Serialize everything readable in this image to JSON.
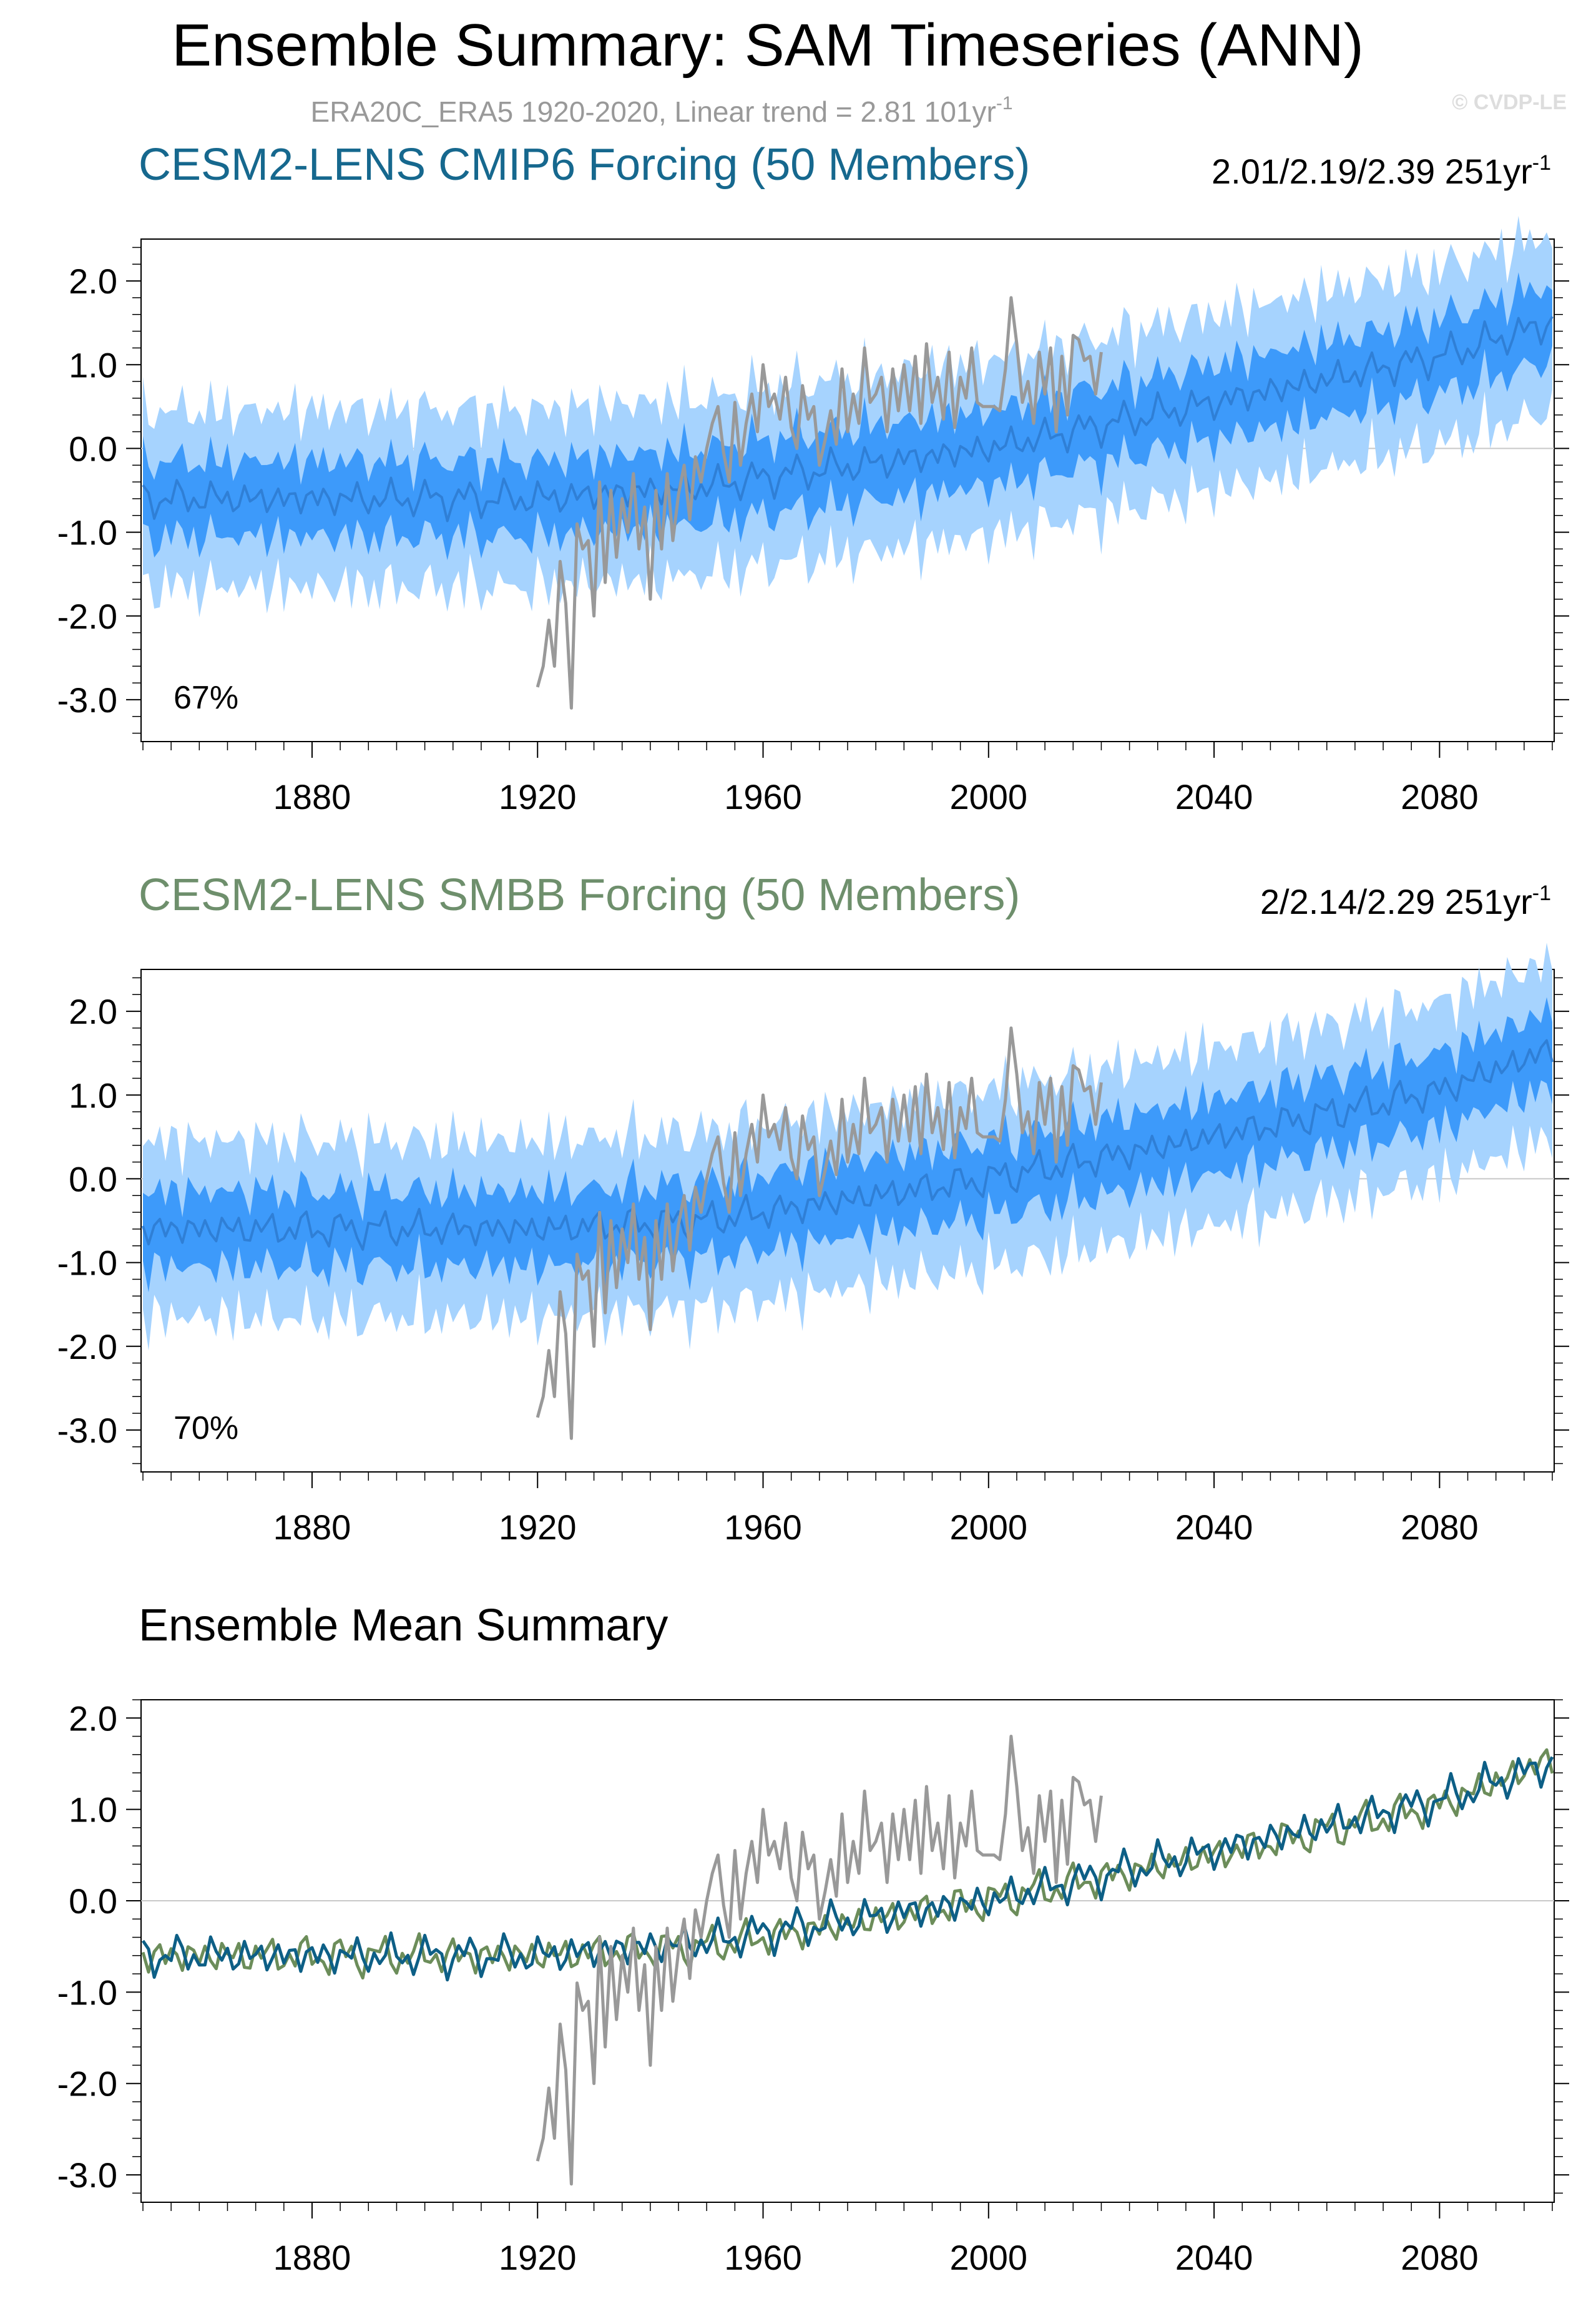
{
  "figure": {
    "main_title": "Ensemble Summary: SAM Timeseries (ANN)",
    "obs_label": "ERA20C_ERA5 1920-2020, Linear trend = 2.81 101yr",
    "obs_label_exp": "-1",
    "watermark": "© CVDP-LE"
  },
  "colors": {
    "band_outer": "#a6d3fe",
    "band_inner": "#3d9afa",
    "mean_line": "#2f7fd6",
    "obs_line": "#999999",
    "cmip6_title": "#16688e",
    "smbb_title": "#6e8f6c",
    "cmip6_mean": "#0d5f86",
    "smbb_mean": "#6c8d5a",
    "zero_line": "#c8c8c8"
  },
  "panels": [
    {
      "title": "CESM2-LENS CMIP6 Forcing (50 Members)",
      "trend_text": "2.01/2.19/2.39 251yr",
      "trend_exp": "-1",
      "percent": "67%"
    },
    {
      "title": "CESM2-LENS SMBB Forcing (50 Members)",
      "trend_text": "2/2.14/2.29 251yr",
      "trend_exp": "-1",
      "percent": "70%"
    },
    {
      "title": "Ensemble Mean Summary"
    }
  ],
  "chart_data": [
    {
      "type": "area",
      "name": "CESM2-LENS CMIP6 Forcing (50 Members)",
      "x_range": [
        1850,
        2100
      ],
      "ylim": [
        -3.5,
        2.5
      ],
      "xticks": [
        1880,
        1920,
        1960,
        2000,
        2040,
        2080
      ],
      "yticks": [
        2.0,
        1.0,
        0.0,
        -1.0,
        -2.0,
        -3.0
      ],
      "yticklabels": [
        "2.0",
        "1.0",
        "0.0",
        "-1.0",
        "-2.0",
        "-3.0"
      ],
      "mean_keypoints": {
        "x": [
          1850,
          1920,
          1950,
          1965,
          2000,
          2040,
          2080,
          2100
        ],
        "y": [
          -0.6,
          -0.6,
          -0.45,
          -0.3,
          0.0,
          0.55,
          1.1,
          1.5
        ]
      },
      "inner_halfwidth": 0.45,
      "outer_halfwidth": 1.05,
      "series": [
        {
          "name": "ERA20C_ERA5",
          "x_start": 1920,
          "values": [
            -2.85,
            -2.6,
            -2.05,
            -2.6,
            -1.35,
            -1.85,
            -3.1,
            -0.9,
            -1.2,
            -1.1,
            -2.0,
            -0.4,
            -1.6,
            -0.5,
            -1.3,
            -0.6,
            -1.0,
            -0.3,
            -1.2,
            -0.7,
            -1.8,
            -0.5,
            -1.2,
            -0.3,
            -1.1,
            -0.55,
            -0.2,
            -0.85,
            -0.1,
            -0.4,
            0.0,
            0.3,
            0.5,
            -0.05,
            -0.4,
            0.55,
            -0.2,
            0.3,
            0.65,
            0.2,
            1.0,
            0.5,
            0.65,
            0.35,
            0.85,
            0.25,
            0.0,
            0.75,
            0.35,
            0.5,
            -0.2,
            0.1,
            0.45,
            0.05,
            0.95,
            0.2,
            0.65,
            0.3,
            1.2,
            0.55,
            0.65,
            0.85,
            0.2,
            0.95,
            0.45,
            1.0,
            0.45,
            1.1,
            0.3,
            1.25,
            0.55,
            0.85,
            0.35,
            1.15,
            0.25,
            0.85,
            0.6,
            1.2,
            0.55,
            0.5,
            0.5,
            0.5,
            0.45,
            0.95,
            1.8,
            1.25,
            0.55,
            0.8,
            0.3,
            1.15,
            0.65,
            1.2,
            0.2,
            1.1,
            0.4,
            1.35,
            1.3,
            1.05,
            1.1,
            0.65,
            1.15
          ]
        }
      ]
    },
    {
      "type": "area",
      "name": "CESM2-LENS SMBB Forcing (50 Members)",
      "x_range": [
        1850,
        2100
      ],
      "ylim": [
        -3.5,
        2.5
      ],
      "xticks": [
        1880,
        1920,
        1960,
        2000,
        2040,
        2080
      ],
      "yticks": [
        2.0,
        1.0,
        0.0,
        -1.0,
        -2.0,
        -3.0
      ],
      "yticklabels": [
        "2.0",
        "1.0",
        "0.0",
        "-1.0",
        "-2.0",
        "-3.0"
      ],
      "mean_keypoints": {
        "x": [
          1850,
          1920,
          1950,
          1965,
          2000,
          2040,
          2080,
          2100
        ],
        "y": [
          -0.6,
          -0.6,
          -0.5,
          -0.35,
          0.0,
          0.5,
          1.05,
          1.55
        ]
      },
      "inner_halfwidth": 0.45,
      "outer_halfwidth": 1.05,
      "series": [
        {
          "name": "ERA20C_ERA5",
          "x_start": 1920,
          "values": [
            -2.85,
            -2.6,
            -2.05,
            -2.6,
            -1.35,
            -1.85,
            -3.1,
            -0.9,
            -1.2,
            -1.1,
            -2.0,
            -0.4,
            -1.6,
            -0.5,
            -1.3,
            -0.6,
            -1.0,
            -0.3,
            -1.2,
            -0.7,
            -1.8,
            -0.5,
            -1.2,
            -0.3,
            -1.1,
            -0.55,
            -0.2,
            -0.85,
            -0.1,
            -0.4,
            0.0,
            0.3,
            0.5,
            -0.05,
            -0.4,
            0.55,
            -0.2,
            0.3,
            0.65,
            0.2,
            1.0,
            0.5,
            0.65,
            0.35,
            0.85,
            0.25,
            0.0,
            0.75,
            0.35,
            0.5,
            -0.2,
            0.1,
            0.45,
            0.05,
            0.95,
            0.2,
            0.65,
            0.3,
            1.2,
            0.55,
            0.65,
            0.85,
            0.2,
            0.95,
            0.45,
            1.0,
            0.45,
            1.1,
            0.3,
            1.25,
            0.55,
            0.85,
            0.35,
            1.15,
            0.25,
            0.85,
            0.6,
            1.2,
            0.55,
            0.5,
            0.5,
            0.5,
            0.45,
            0.95,
            1.8,
            1.25,
            0.55,
            0.8,
            0.3,
            1.15,
            0.65,
            1.2,
            0.2,
            1.1,
            0.4,
            1.35,
            1.3,
            1.05,
            1.1,
            0.65,
            1.15
          ]
        }
      ]
    },
    {
      "type": "line",
      "name": "Ensemble Mean Summary",
      "x_range": [
        1850,
        2100
      ],
      "ylim": [
        -3.3,
        2.2
      ],
      "xticks": [
        1880,
        1920,
        1960,
        2000,
        2040,
        2080
      ],
      "yticks": [
        2.0,
        1.0,
        0.0,
        -1.0,
        -2.0,
        -3.0
      ],
      "yticklabels": [
        "2.0",
        "1.0",
        "0.0",
        "-1.0",
        "-2.0",
        "-3.0"
      ],
      "series": [
        {
          "name": "CESM2-LENS CMIP6 mean",
          "keypoints": {
            "x": [
              1850,
              1920,
              1950,
              1965,
              2000,
              2040,
              2080,
              2100
            ],
            "y": [
              -0.6,
              -0.6,
              -0.45,
              -0.3,
              0.0,
              0.55,
              1.1,
              1.5
            ]
          }
        },
        {
          "name": "CESM2-LENS SMBB mean",
          "keypoints": {
            "x": [
              1850,
              1920,
              1950,
              1965,
              2000,
              2040,
              2080,
              2100
            ],
            "y": [
              -0.6,
              -0.6,
              -0.5,
              -0.35,
              0.0,
              0.5,
              1.05,
              1.55
            ]
          }
        },
        {
          "name": "ERA20C_ERA5",
          "x_start": 1920,
          "values": [
            -2.85,
            -2.6,
            -2.05,
            -2.6,
            -1.35,
            -1.85,
            -3.1,
            -0.9,
            -1.2,
            -1.1,
            -2.0,
            -0.4,
            -1.6,
            -0.5,
            -1.3,
            -0.6,
            -1.0,
            -0.3,
            -1.2,
            -0.7,
            -1.8,
            -0.5,
            -1.2,
            -0.3,
            -1.1,
            -0.55,
            -0.2,
            -0.85,
            -0.1,
            -0.4,
            0.0,
            0.3,
            0.5,
            -0.05,
            -0.4,
            0.55,
            -0.2,
            0.3,
            0.65,
            0.2,
            1.0,
            0.5,
            0.65,
            0.35,
            0.85,
            0.25,
            0.0,
            0.75,
            0.35,
            0.5,
            -0.2,
            0.1,
            0.45,
            0.05,
            0.95,
            0.2,
            0.65,
            0.3,
            1.2,
            0.55,
            0.65,
            0.85,
            0.2,
            0.95,
            0.45,
            1.0,
            0.45,
            1.1,
            0.3,
            1.25,
            0.55,
            0.85,
            0.35,
            1.15,
            0.25,
            0.85,
            0.6,
            1.2,
            0.55,
            0.5,
            0.5,
            0.5,
            0.45,
            0.95,
            1.8,
            1.25,
            0.55,
            0.8,
            0.3,
            1.15,
            0.65,
            1.2,
            0.2,
            1.1,
            0.4,
            1.35,
            1.3,
            1.05,
            1.1,
            0.65,
            1.15
          ]
        }
      ]
    }
  ]
}
